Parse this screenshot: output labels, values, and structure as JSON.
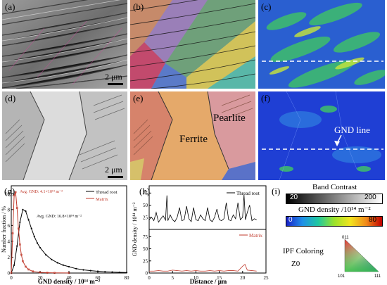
{
  "panels": {
    "a": "(a)",
    "b": "(b)",
    "c": "(c)",
    "d": "(d)",
    "e": "(e)",
    "f": "(f)",
    "g": "(g)",
    "h": "(h)",
    "i": "(i)"
  },
  "scale_bar": "2 μm",
  "labels_e": {
    "ferrite": "Ferrite",
    "pearlite": "Pearlite"
  },
  "label_f": "GND line",
  "colors": {
    "thread_root": "#000000",
    "matrix": "#c0392b",
    "gnd_low": "#1a22c8",
    "gnd_high": "#c00000"
  },
  "chart_g": {
    "ylabel": "Number fraction / %",
    "xlabel": "GND density / 10¹⁴ m⁻²",
    "annot_matrix": "Avg. GND: 4.1×10¹⁴ m⁻²",
    "annot_thread": "Avg. GND: 16.8×10¹⁴ m⁻²",
    "legend": [
      "Thread root",
      "Matrix"
    ],
    "xticks": [
      "0",
      "20",
      "40",
      "60",
      "80"
    ],
    "yticks": [
      "0",
      "2",
      "4",
      "6",
      "8",
      "10"
    ]
  },
  "chart_h": {
    "ylabel": "GND density / 10¹⁴ m⁻²",
    "xlabel": "Distance / μm",
    "legend_top": "Thread root",
    "legend_bottom": "Matrix",
    "xticks": [
      "0",
      "5",
      "10",
      "15",
      "20",
      "25"
    ],
    "yticks_top": [
      "25",
      "50",
      "75"
    ],
    "yticks_bottom": [
      "0",
      "25",
      "50",
      "75"
    ]
  },
  "chart_data": [
    {
      "type": "line",
      "xlabel": "GND density / 10¹⁴ m⁻²",
      "ylabel": "Number fraction / %",
      "xlim": [
        0,
        80
      ],
      "ylim": [
        0,
        11
      ],
      "series": [
        {
          "name": "Thread root",
          "x": [
            0,
            2,
            4,
            6,
            8,
            10,
            12,
            14,
            16,
            18,
            20,
            24,
            28,
            32,
            36,
            40,
            45,
            50,
            55,
            60,
            65,
            70,
            75,
            80
          ],
          "y": [
            0,
            1.0,
            3.4,
            6.4,
            8.0,
            7.8,
            6.7,
            5.6,
            4.6,
            3.8,
            3.2,
            2.3,
            1.7,
            1.3,
            1.0,
            0.8,
            0.55,
            0.4,
            0.3,
            0.22,
            0.16,
            0.12,
            0.09,
            0.07
          ]
        },
        {
          "name": "Matrix",
          "x": [
            0,
            1,
            2,
            3,
            4,
            5,
            6,
            7,
            8,
            10,
            12,
            15,
            20,
            25,
            30,
            40
          ],
          "y": [
            0,
            5,
            9.8,
            10.2,
            8.2,
            5.6,
            3.6,
            2.3,
            1.5,
            0.8,
            0.45,
            0.2,
            0.08,
            0.04,
            0.02,
            0.01
          ]
        }
      ]
    },
    {
      "type": "line",
      "xlabel": "Distance / μm",
      "ylabel": "GND density / 10¹⁴ m⁻²",
      "xlim": [
        0,
        25
      ],
      "ylim": [
        0,
        90
      ],
      "series": [
        {
          "name": "Thread root",
          "x": [
            0,
            0.5,
            1,
            1.5,
            2,
            2.5,
            3,
            3.5,
            3.8,
            4,
            4.5,
            5,
            5.5,
            6,
            6.5,
            7,
            7.5,
            8,
            8.5,
            9,
            9.5,
            10,
            10.5,
            11,
            11.5,
            12,
            12.5,
            13,
            13.5,
            14,
            14.5,
            15,
            15.5,
            16,
            16.5,
            17,
            17.5,
            18,
            18.5,
            19,
            19.5,
            20,
            20.3,
            20.6,
            21,
            21.5,
            22,
            22.5,
            23
          ],
          "y": [
            20,
            25,
            18,
            35,
            15,
            22,
            28,
            19,
            70,
            18,
            30,
            20,
            16,
            25,
            45,
            18,
            20,
            48,
            22,
            16,
            45,
            20,
            18,
            30,
            22,
            18,
            45,
            20,
            16,
            25,
            42,
            20,
            18,
            22,
            55,
            20,
            18,
            30,
            22,
            55,
            20,
            25,
            72,
            20,
            35,
            50,
            18,
            22,
            20
          ]
        },
        {
          "name": "Matrix",
          "x": [
            0,
            1,
            2,
            3,
            4,
            5,
            6,
            7,
            8,
            9,
            10,
            11,
            12,
            13,
            14,
            15,
            16,
            17,
            18,
            19,
            20,
            20.5,
            21,
            22,
            23
          ],
          "y": [
            4,
            4,
            5,
            4,
            4,
            6,
            5,
            4,
            5,
            4,
            5,
            4,
            4,
            5,
            4,
            5,
            4,
            5,
            5,
            4,
            14,
            18,
            6,
            5,
            4
          ]
        }
      ]
    }
  ],
  "legend_i": {
    "band_title": "Band Contrast",
    "band_min": "20",
    "band_max": "200",
    "gnd_title": "GND density /10¹⁴ m⁻²",
    "gnd_min": "0",
    "gnd_max": "80",
    "ipf_title": "IPF Coloring",
    "ipf_sub": "Z0",
    "ipf_011": "011",
    "ipf_101": "101",
    "ipf_111": "111"
  }
}
